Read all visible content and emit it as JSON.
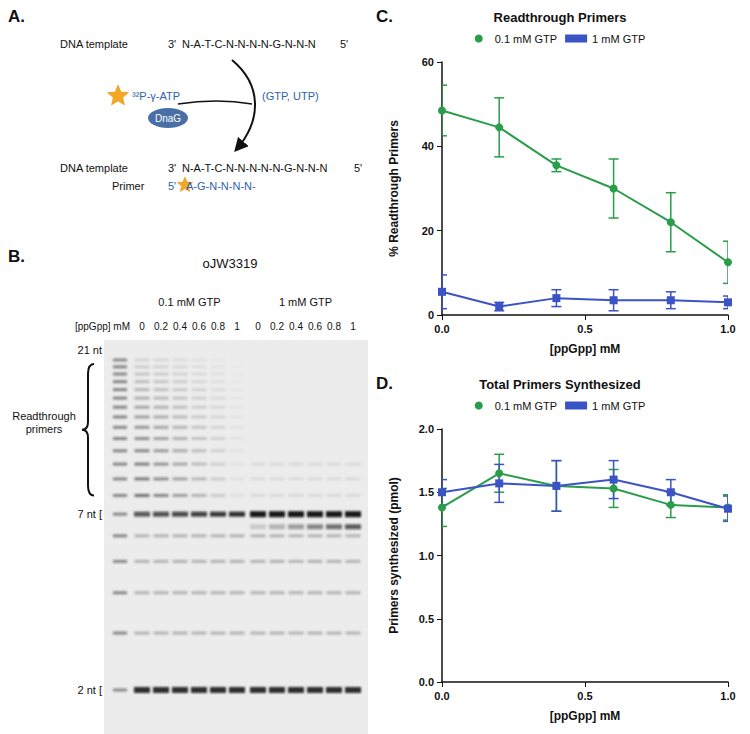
{
  "panels": {
    "A": {
      "label": "A.",
      "template": {
        "name": "DNA template",
        "end3": "3'",
        "sequence": "N-A-T-C-N-N-N-N-G-N-N-N",
        "end5": "5'"
      },
      "substrate": "³²P-γ-ATP",
      "enzyme": "DnaG",
      "nucleotides": "(GTP, UTP)",
      "product": {
        "template_name": "DNA template",
        "primer_name": "Primer",
        "end3": "3'",
        "template_sequence": "N-A-T-C-N-N-N-N-N-G-N-N-N",
        "end5": "5'",
        "primer_end5": "5'",
        "primer_sequence": "A-G-N-N-N-N-"
      }
    },
    "B": {
      "label": "B.",
      "title": "oJW3319",
      "lane_axis": "[ppGpp] mM",
      "groups": [
        {
          "name": "0.1 mM GTP",
          "lanes": [
            0,
            0.2,
            0.4,
            0.6,
            0.8,
            1
          ]
        },
        {
          "name": "1 mM GTP",
          "lanes": [
            0,
            0.2,
            0.4,
            0.6,
            0.8,
            1
          ]
        }
      ],
      "size_markers": [
        {
          "nt": 21,
          "label": "21 nt"
        },
        {
          "nt": 7,
          "label": "7 nt ["
        },
        {
          "nt": 2,
          "label": "2 nt ["
        }
      ],
      "bracket": "Readthrough primers"
    }
  },
  "chart_data": [
    {
      "panel": "C.",
      "type": "line",
      "title": "Readthrough Primers",
      "x_label": "[ppGpp] mM",
      "y_label": "% Readthrough Primers",
      "x": [
        0,
        0.2,
        0.4,
        0.6,
        0.8,
        1.0
      ],
      "series": [
        {
          "name": "0.1 mM GTP",
          "color": "#2a9d4a",
          "marker": "circle",
          "values": [
            48.5,
            44.5,
            35.5,
            30,
            22,
            12.5
          ],
          "error": [
            6,
            7,
            1.5,
            7,
            7,
            5
          ]
        },
        {
          "name": "1 mM GTP",
          "color": "#3b53c4",
          "marker": "square",
          "values": [
            5.5,
            2,
            4,
            3.5,
            3.5,
            3
          ],
          "error": [
            4,
            1,
            2,
            2.5,
            2,
            1.5
          ]
        }
      ],
      "xlim": [
        0,
        1
      ],
      "xticks": [
        {
          "value": 0,
          "label": "0.0"
        },
        {
          "value": 0.5,
          "label": "0.5"
        },
        {
          "value": 1,
          "label": "1.0"
        }
      ],
      "ylim": [
        0,
        60
      ],
      "yticks": [
        0,
        20,
        40,
        60
      ],
      "grid": false,
      "legend": "top"
    },
    {
      "panel": "D.",
      "type": "line",
      "title": "Total Primers Synthesized",
      "x_label": "[ppGpp] mM",
      "y_label": "Primers synthesized (pmol)",
      "x": [
        0,
        0.2,
        0.4,
        0.6,
        0.8,
        1.0
      ],
      "series": [
        {
          "name": "0.1 mM GTP",
          "color": "#2a9d4a",
          "marker": "circle",
          "values": [
            1.38,
            1.65,
            1.55,
            1.53,
            1.4,
            1.38
          ],
          "error": [
            0.15,
            0.15,
            0.2,
            0.15,
            0.1,
            0.1
          ]
        },
        {
          "name": "1 mM GTP",
          "color": "#3b53c4",
          "marker": "square",
          "values": [
            1.5,
            1.57,
            1.55,
            1.6,
            1.5,
            1.37
          ],
          "error": [
            0.1,
            0.15,
            0.2,
            0.15,
            0.1,
            0.1
          ]
        }
      ],
      "xlim": [
        0,
        1
      ],
      "xticks": [
        {
          "value": 0,
          "label": "0.0"
        },
        {
          "value": 0.5,
          "label": "0.5"
        },
        {
          "value": 1,
          "label": "1.0"
        }
      ],
      "ylim": [
        0,
        2
      ],
      "yticks": [
        {
          "value": 0,
          "label": "0.0"
        },
        {
          "value": 0.5,
          "label": "0.5"
        },
        {
          "value": 1,
          "label": "1.0"
        },
        {
          "value": 1.5,
          "label": "1.5"
        },
        {
          "value": 2,
          "label": "2.0"
        }
      ],
      "grid": false,
      "legend": "top"
    }
  ]
}
